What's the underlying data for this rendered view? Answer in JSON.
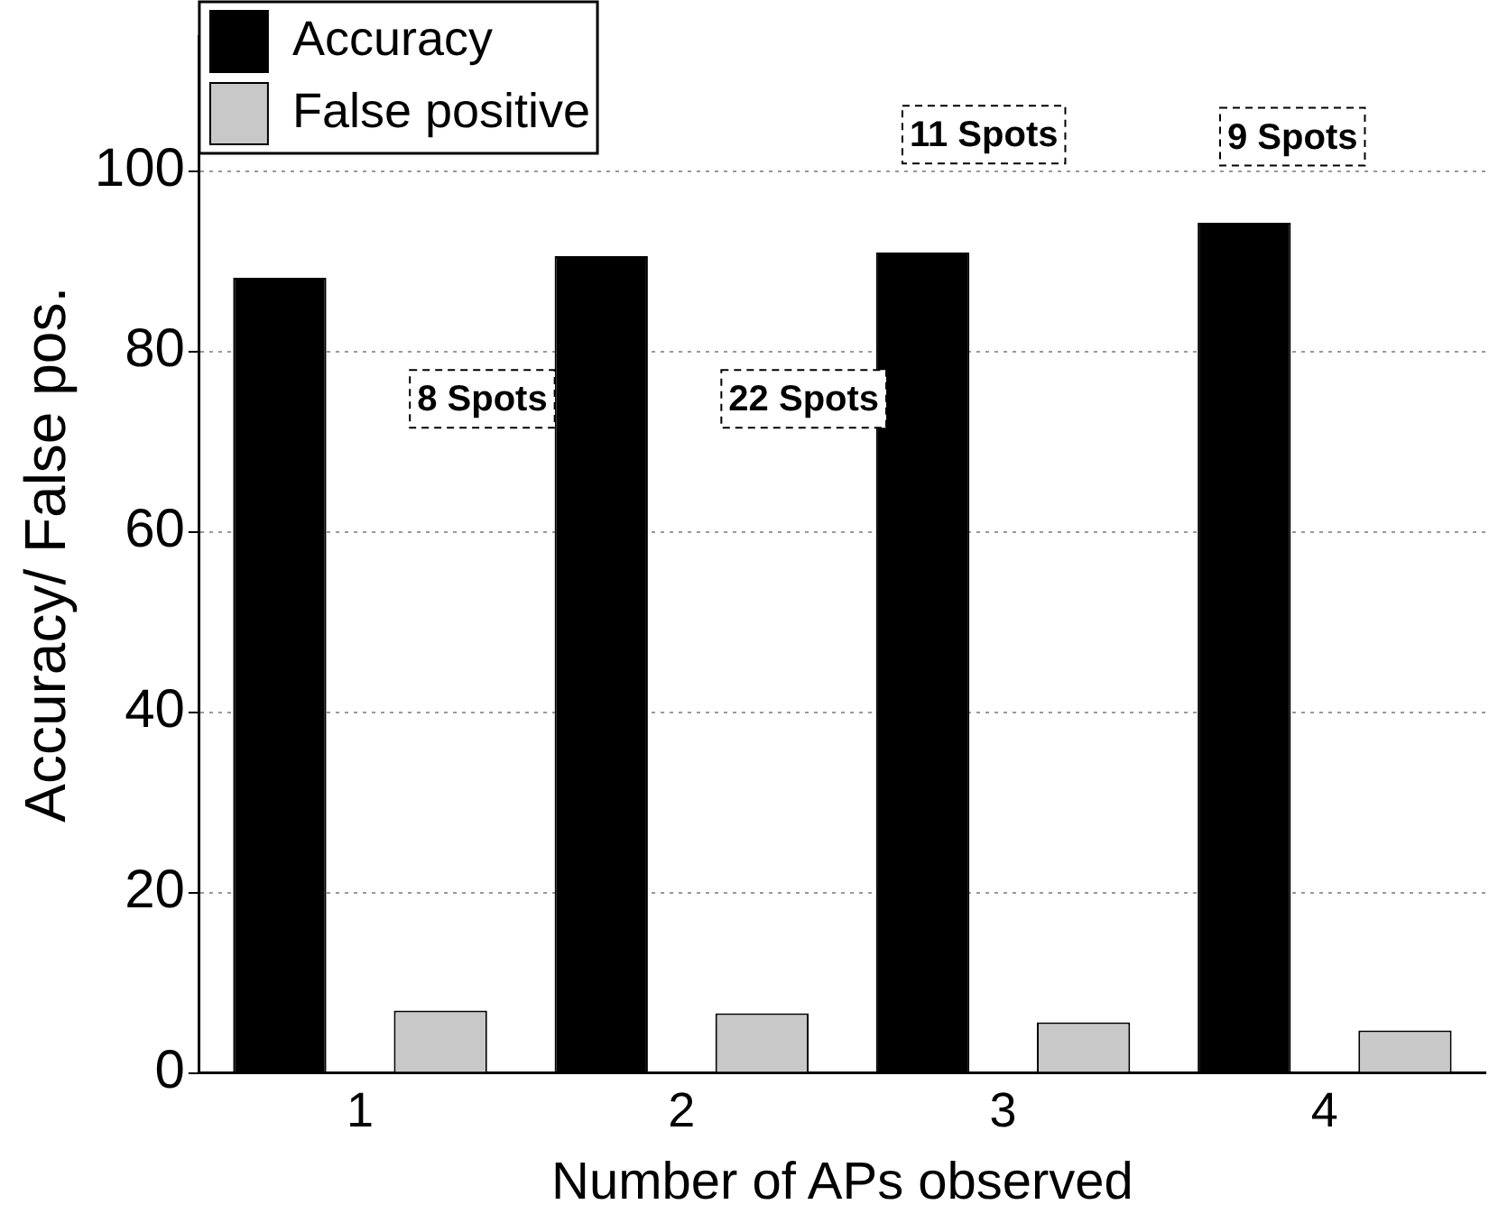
{
  "chart_data": {
    "type": "bar",
    "xlabel": "Number of APs observed",
    "ylabel": "Accuracy/ False pos.",
    "categories": [
      "1",
      "2",
      "3",
      "4"
    ],
    "series": [
      {
        "name": "Accuracy",
        "color": "#000000",
        "values": [
          88.2,
          90.6,
          91.0,
          94.3
        ]
      },
      {
        "name": "False positive",
        "color": "#c8c8c8",
        "values": [
          6.9,
          6.6,
          5.6,
          4.7
        ]
      }
    ],
    "ylim": [
      0,
      115
    ],
    "yticks": [
      0,
      20,
      40,
      60,
      80,
      100
    ],
    "grid": "y",
    "legend": "top left",
    "annotations": [
      "8 Spots",
      "22 Spots",
      "11 Spots",
      "9 Spots"
    ]
  }
}
